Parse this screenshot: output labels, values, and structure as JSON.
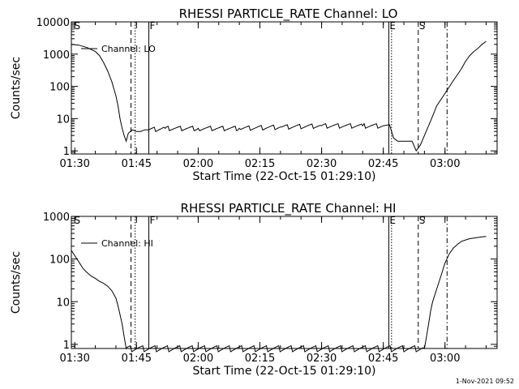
{
  "footer": {
    "date_stamp": "1-Nov-2021 09:52"
  },
  "chart_data": [
    {
      "type": "line",
      "title": "RHESSI PARTICLE_RATE Channel: LO",
      "xlabel": "Start Time (22-Oct-15 01:29:10)",
      "ylabel": "Counts/sec",
      "y_scale": "log",
      "xlim": [
        "01:29:10",
        "03:12:40"
      ],
      "ylim": [
        0.8,
        10000
      ],
      "x_ticks": [
        "01:30",
        "01:45",
        "02:00",
        "02:15",
        "02:30",
        "02:45",
        "03:00"
      ],
      "y_ticks": [
        "1",
        "10",
        "100",
        "1000",
        "10000"
      ],
      "legend": {
        "position": "top-left",
        "entries": [
          "Channel: LO"
        ]
      },
      "series": [
        {
          "name": "Channel: LO",
          "x": [
            "01:29:10",
            "01:31:00",
            "01:33:00",
            "01:35:00",
            "01:36:00",
            "01:37:00",
            "01:38:00",
            "01:39:00",
            "01:40:00",
            "01:40:30",
            "01:41:00",
            "01:41:30",
            "01:42:00",
            "01:42:30",
            "01:43:00",
            "01:43:30",
            "01:44:00",
            "01:45:00",
            "01:46:00",
            "01:47:00",
            "01:48:00",
            "01:52:00",
            "02:00:00",
            "02:10:00",
            "02:20:00",
            "02:30:00",
            "02:40:00",
            "02:45:00",
            "02:46:30",
            "02:47:30",
            "02:48:30",
            "02:50:00",
            "02:51:00",
            "02:52:00",
            "02:53:00",
            "02:54:00",
            "02:55:00",
            "02:56:00",
            "02:57:00",
            "02:58:00",
            "03:00:00",
            "03:02:00",
            "03:04:00",
            "03:05:00",
            "03:06:00",
            "03:07:00",
            "03:08:00",
            "03:09:00",
            "03:10:00"
          ],
          "values": [
            2000,
            1900,
            1600,
            1200,
            900,
            550,
            300,
            140,
            50,
            25,
            10,
            5,
            3,
            2,
            3.5,
            4,
            4.5,
            4,
            4,
            4.5,
            4.5,
            5,
            5,
            5,
            5.5,
            6,
            6,
            6,
            6.5,
            2.5,
            2,
            2,
            2,
            2,
            1,
            1.5,
            3,
            6,
            12,
            25,
            60,
            150,
            350,
            600,
            900,
            1200,
            1500,
            2000,
            2500
          ]
        }
      ],
      "annotations": [
        {
          "label": "S",
          "time": "01:29:40",
          "line": "none"
        },
        {
          "label": "",
          "time": "01:43:40",
          "line": "dashed"
        },
        {
          "label": "",
          "time": "01:44:40",
          "line": "dotted"
        },
        {
          "label": "F",
          "time": "01:48:00",
          "line": "solid"
        },
        {
          "label": "E",
          "time": "02:46:20",
          "line": "solid"
        },
        {
          "label": "",
          "time": "02:47:00",
          "line": "dotted"
        },
        {
          "label": "S",
          "time": "02:53:30",
          "line": "dashed"
        },
        {
          "label": "",
          "time": "03:00:30",
          "line": "dash-dot"
        }
      ]
    },
    {
      "type": "line",
      "title": "RHESSI PARTICLE_RATE Channel: HI",
      "xlabel": "Start Time (22-Oct-15 01:29:10)",
      "ylabel": "Counts/sec",
      "y_scale": "log",
      "xlim": [
        "01:29:10",
        "03:12:40"
      ],
      "ylim": [
        0.8,
        1000
      ],
      "x_ticks": [
        "01:30",
        "01:45",
        "02:00",
        "02:15",
        "02:30",
        "02:45",
        "03:00"
      ],
      "y_ticks": [
        "1",
        "10",
        "100",
        "1000"
      ],
      "legend": {
        "position": "top-left",
        "entries": [
          "Channel: HI"
        ]
      },
      "series": [
        {
          "name": "Channel: HI",
          "x": [
            "01:29:10",
            "01:30:00",
            "01:31:00",
            "01:32:00",
            "01:33:00",
            "01:34:00",
            "01:35:00",
            "01:36:00",
            "01:37:00",
            "01:38:00",
            "01:39:00",
            "01:40:00",
            "01:40:30",
            "01:41:00",
            "01:41:30",
            "01:42:00",
            "01:42:30",
            "02:55:00",
            "02:55:30",
            "02:56:00",
            "02:56:30",
            "02:57:00",
            "02:58:00",
            "02:59:00",
            "03:00:00",
            "03:01:00",
            "03:02:00",
            "03:03:00",
            "03:04:00",
            "03:05:00",
            "03:06:00",
            "03:07:00",
            "03:08:00",
            "03:09:00",
            "03:10:00"
          ],
          "values": [
            160,
            120,
            85,
            60,
            48,
            40,
            35,
            30,
            27,
            23,
            18,
            12,
            8,
            5,
            3,
            1.5,
            0.8,
            0.8,
            1.5,
            3,
            6,
            10,
            20,
            40,
            80,
            130,
            180,
            220,
            260,
            280,
            300,
            310,
            320,
            330,
            340
          ]
        }
      ],
      "annotations": [
        {
          "label": "S",
          "time": "01:29:40",
          "line": "none"
        },
        {
          "label": "",
          "time": "01:43:40",
          "line": "dashed"
        },
        {
          "label": "",
          "time": "01:44:40",
          "line": "dotted"
        },
        {
          "label": "F",
          "time": "01:48:00",
          "line": "solid"
        },
        {
          "label": "E",
          "time": "02:46:20",
          "line": "solid"
        },
        {
          "label": "",
          "time": "02:47:00",
          "line": "dotted"
        },
        {
          "label": "S",
          "time": "02:53:30",
          "line": "dashed"
        },
        {
          "label": "",
          "time": "03:00:30",
          "line": "dash-dot"
        }
      ]
    }
  ]
}
